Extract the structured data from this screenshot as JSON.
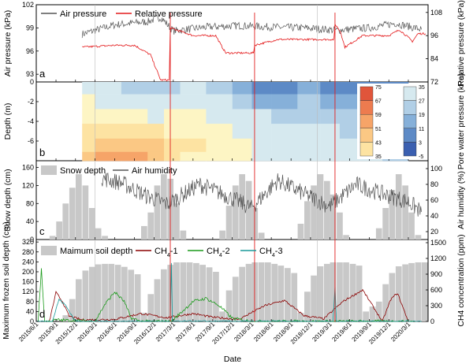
{
  "figure": {
    "xlabel": "Date",
    "x_ticks": [
      "2015/6/1",
      "2015/9/1",
      "2015/12/1",
      "2016/3/1",
      "2016/6/1",
      "2016/9/1",
      "2016/12/1",
      "2017/3/1",
      "2017/6/1",
      "2017/9/1",
      "2017/12/1",
      "2018/3/1",
      "2018/6/1",
      "2018/9/1",
      "2018/12/1",
      "2019/3/1",
      "2019/6/1",
      "2019/9/1",
      "2019/12/1",
      "2020/3/1"
    ],
    "x_range": [
      "2015/6/1",
      "2020/6/1"
    ],
    "event_lines": [
      "2017/2/15",
      "2018/3/15",
      "2019/3/25"
    ],
    "event_line_color": "#e02020",
    "grid_lines": [
      "2016/3/1",
      "2019/1/1"
    ],
    "grid_color": "#bbbbbb"
  },
  "chart_data": [
    {
      "panel": "a",
      "type": "line",
      "ylabel": "Air pressure (kPa)",
      "ylim": [
        92,
        102
      ],
      "yticks": [
        "93",
        "96",
        "99",
        "102"
      ],
      "y2label": "Relative pressure (kPa)",
      "y2lim": [
        72,
        112
      ],
      "y2ticks": [
        "72",
        "84",
        "96",
        "108"
      ],
      "legend_position": "top-left",
      "series": [
        {
          "name": "Air pressure",
          "color": "#555555",
          "axis": "left",
          "x": [
            "2016/1/1",
            "2016/6/1",
            "2016/11/1",
            "2017/1/1",
            "2017/3/1",
            "2017/8/1",
            "2018/1/1",
            "2018/6/1",
            "2018/11/1",
            "2019/4/1",
            "2019/9/1",
            "2020/1/1",
            "2020/5/1"
          ],
          "y": [
            98.2,
            99.4,
            99.8,
            100.4,
            98.6,
            99.1,
            99.3,
            99.1,
            99.0,
            98.7,
            99.0,
            99.6,
            98.8
          ]
        },
        {
          "name": "Relative pressure",
          "color": "#e41a1c",
          "axis": "right",
          "x": [
            "2016/1/1",
            "2016/6/1",
            "2016/9/1",
            "2016/11/15",
            "2017/1/1",
            "2017/2/10",
            "2017/2/15",
            "2017/6/1",
            "2017/9/15",
            "2017/10/15",
            "2017/11/1",
            "2018/3/10",
            "2018/3/15",
            "2018/7/1",
            "2018/12/1",
            "2019/3/20",
            "2019/3/25",
            "2019/4/20",
            "2019/5/10",
            "2019/8/1",
            "2019/12/1",
            "2020/1/20",
            "2020/3/1",
            "2020/3/20",
            "2020/4/15",
            "2020/5/20"
          ],
          "y": [
            90,
            91,
            91,
            86,
            73,
            73,
            100,
            96,
            96,
            90,
            87,
            87,
            91,
            94,
            94,
            94,
            102,
            98,
            90,
            96,
            96,
            99,
            95,
            93,
            97,
            97
          ]
        }
      ]
    },
    {
      "panel": "b",
      "type": "heatmap",
      "ylabel": "Depth (m)",
      "ylim": [
        -8,
        0
      ],
      "yticks": [
        "-6",
        "-4",
        "-2",
        "0"
      ],
      "colorbar_label": "Pore water pressure (kPa)",
      "colorbar_warm_ticks": [
        "75",
        "67",
        "59",
        "51",
        "43",
        "35"
      ],
      "colorbar_cool_ticks": [
        "35",
        "27",
        "19",
        "11",
        "3",
        "-5"
      ],
      "depths": [
        -0.5,
        -2.0,
        -3.5,
        -5.0,
        -6.5,
        -7.7
      ],
      "times": [
        "2016/1/1",
        "2016/5/1",
        "2016/9/1",
        "2017/1/1",
        "2017/2/1",
        "2017/6/1",
        "2017/10/1",
        "2018/2/1",
        "2018/4/1",
        "2018/8/1",
        "2018/12/1",
        "2019/3/1",
        "2019/6/1",
        "2019/9/1",
        "2020/1/1",
        "2020/3/1"
      ],
      "z": [
        [
          31,
          28,
          24,
          20,
          22,
          27,
          25,
          14,
          7,
          9,
          12,
          10,
          9,
          10,
          8,
          10
        ],
        [
          35,
          32,
          30,
          28,
          30,
          30,
          29,
          24,
          16,
          18,
          20,
          16,
          14,
          15,
          12,
          13
        ],
        [
          40,
          38,
          36,
          34,
          35,
          35,
          32,
          30,
          27,
          26,
          25,
          22,
          19,
          20,
          17,
          16
        ],
        [
          45,
          48,
          49,
          47,
          40,
          39,
          37,
          34,
          32,
          31,
          30,
          28,
          26,
          25,
          23,
          20
        ],
        [
          50,
          55,
          56,
          54,
          45,
          43,
          39,
          36,
          34,
          33,
          32,
          30,
          28,
          27,
          25,
          22
        ],
        [
          54,
          59,
          60,
          58,
          46,
          42,
          37,
          35,
          33,
          32,
          31,
          30,
          29,
          28,
          26,
          24
        ]
      ]
    },
    {
      "panel": "c",
      "type": "bar",
      "ylabel": "Snow depth (cm)",
      "ylim": [
        0,
        175
      ],
      "yticks": [
        "0",
        "40",
        "80",
        "120",
        "160"
      ],
      "y2label": "Air humidity (%)",
      "y2lim": [
        10,
        110
      ],
      "y2ticks": [
        "20",
        "40",
        "60",
        "80",
        "100"
      ],
      "legend_position": "top-left",
      "series": [
        {
          "name": "Snow depth",
          "color": "#c8c8c8",
          "axis": "left",
          "x": [
            "2015/8/16",
            "2015/9/16",
            "2015/10/16",
            "2015/11/16",
            "2015/12/16",
            "2016/1/16",
            "2016/2/16",
            "2016/3/16",
            "2016/4/16",
            "2016/5/16",
            "2016/10/16",
            "2016/11/16",
            "2016/12/16",
            "2017/1/16",
            "2017/2/16",
            "2017/3/16",
            "2017/4/16",
            "2017/10/16",
            "2017/11/16",
            "2017/12/16",
            "2018/1/16",
            "2018/2/16",
            "2018/3/16",
            "2018/4/16",
            "2018/10/16",
            "2018/11/16",
            "2018/12/16",
            "2019/1/16",
            "2019/2/16",
            "2019/3/16",
            "2019/4/16",
            "2019/5/16",
            "2019/10/16",
            "2019/11/16",
            "2019/12/16",
            "2020/1/16",
            "2020/2/16",
            "2020/3/16",
            "2020/4/16"
          ],
          "values": [
            8,
            40,
            80,
            115,
            145,
            120,
            70,
            25,
            8,
            0,
            30,
            60,
            120,
            145,
            135,
            80,
            20,
            20,
            75,
            120,
            145,
            130,
            70,
            15,
            35,
            85,
            120,
            145,
            130,
            100,
            60,
            10,
            25,
            70,
            110,
            145,
            120,
            60,
            10
          ]
        },
        {
          "name": "Air humidity",
          "color": "#555555",
          "axis": "right",
          "x": [
            "2016/4/1",
            "2016/7/1",
            "2016/11/1",
            "2017/2/1",
            "2017/7/1",
            "2017/11/1",
            "2018/3/1",
            "2018/7/1",
            "2018/11/1",
            "2019/3/1",
            "2019/7/1",
            "2019/11/1",
            "2020/3/1",
            "2020/5/1"
          ],
          "y": [
            88,
            82,
            65,
            55,
            80,
            66,
            50,
            85,
            68,
            52,
            80,
            68,
            58,
            45
          ]
        }
      ]
    },
    {
      "panel": "d",
      "type": "bar",
      "ylabel": "Maximum frozen soil depth (cm)",
      "ylim": [
        0,
        330
      ],
      "yticks": [
        "0",
        "40",
        "80",
        "120",
        "160",
        "200",
        "240",
        "280",
        "320"
      ],
      "y2label": "CH4 concentration (ppm)",
      "y2lim": [
        0,
        1560
      ],
      "y2ticks": [
        "0",
        "300",
        "600",
        "900",
        "1200",
        "1500"
      ],
      "legend_position": "top",
      "series": [
        {
          "name": "Maimum soil depth",
          "color": "#c8c8c8",
          "axis": "left",
          "x": [
            "2015/10/16",
            "2015/11/16",
            "2015/12/16",
            "2016/1/16",
            "2016/2/16",
            "2016/3/16",
            "2016/4/16",
            "2016/5/16",
            "2016/6/16",
            "2016/7/16",
            "2016/8/16",
            "2016/9/16",
            "2016/10/16",
            "2016/11/16",
            "2016/12/16",
            "2017/1/16",
            "2017/2/16",
            "2017/3/16",
            "2017/4/16",
            "2017/5/16",
            "2017/6/16",
            "2017/7/16",
            "2017/8/16",
            "2017/9/16",
            "2017/10/16",
            "2017/11/16",
            "2017/12/16",
            "2018/1/16",
            "2018/2/16",
            "2018/3/16",
            "2018/4/16",
            "2018/5/16",
            "2018/6/16",
            "2018/7/16",
            "2018/8/16",
            "2018/9/16",
            "2018/10/16",
            "2018/11/16",
            "2018/12/16",
            "2019/1/16",
            "2019/2/16",
            "2019/3/16",
            "2019/4/16",
            "2019/5/16",
            "2019/6/16",
            "2019/7/16",
            "2019/8/16",
            "2019/9/16",
            "2019/10/16",
            "2019/11/16",
            "2019/12/16",
            "2020/1/16",
            "2020/2/16",
            "2020/3/16",
            "2020/4/16",
            "2020/5/16"
          ],
          "values": [
            25,
            90,
            170,
            205,
            220,
            230,
            232,
            232,
            228,
            220,
            208,
            190,
            35,
            110,
            170,
            210,
            228,
            238,
            238,
            238,
            235,
            228,
            218,
            200,
            40,
            125,
            180,
            220,
            232,
            238,
            238,
            238,
            232,
            225,
            215,
            195,
            35,
            120,
            185,
            222,
            232,
            238,
            238,
            238,
            232,
            225,
            40,
            60,
            80,
            150,
            195,
            222,
            230,
            235,
            238,
            238
          ]
        },
        {
          "name": "CH4-1",
          "color": "#8b0000",
          "axis": "right",
          "x": [
            "2015/8/1",
            "2015/9/1",
            "2015/10/1",
            "2015/11/1",
            "2016/1/1",
            "2016/6/1",
            "2016/10/1",
            "2017/2/1",
            "2017/6/1",
            "2017/9/1",
            "2018/1/1",
            "2018/5/1",
            "2018/8/1",
            "2018/11/1",
            "2019/2/1",
            "2019/5/1",
            "2019/8/1",
            "2019/11/1",
            "2019/12/10",
            "2020/1/10",
            "2020/3/1"
          ],
          "y": [
            0,
            550,
            380,
            100,
            30,
            40,
            150,
            70,
            150,
            80,
            40,
            300,
            400,
            110,
            50,
            380,
            600,
            0,
            420,
            540,
            0
          ]
        },
        {
          "name": "CH4-2",
          "color": "#1a9a1a",
          "axis": "right",
          "x": [
            "2015/6/10",
            "2015/6/25",
            "2015/7/10",
            "2015/8/1",
            "2015/9/1",
            "2016/3/1",
            "2016/4/15",
            "2016/6/1",
            "2016/7/15",
            "2016/8/15",
            "2016/10/1",
            "2017/2/20",
            "2017/4/1",
            "2017/6/1",
            "2017/8/1",
            "2017/10/1",
            "2017/12/1",
            "2018/3/1",
            "2019/3/1",
            "2020/4/1"
          ],
          "y": [
            0,
            1010,
            0,
            0,
            30,
            0,
            320,
            560,
            380,
            70,
            0,
            0,
            150,
            380,
            440,
            300,
            60,
            0,
            0,
            0
          ]
        },
        {
          "name": "CH4-3",
          "color": "#1a9a9a",
          "axis": "right",
          "x": [
            "2015/6/1",
            "2015/8/15",
            "2015/9/15",
            "2015/10/15",
            "2015/12/1",
            "2017/2/15",
            "2017/2/20",
            "2017/2/25",
            "2019/3/15",
            "2019/3/25",
            "2019/4/1",
            "2020/5/1"
          ],
          "y": [
            0,
            0,
            420,
            310,
            0,
            0,
            1100,
            0,
            0,
            650,
            0,
            0
          ]
        }
      ]
    }
  ]
}
